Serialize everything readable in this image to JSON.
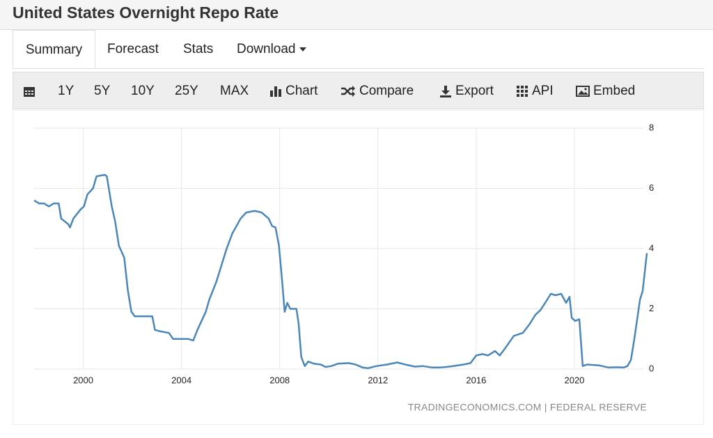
{
  "header": {
    "title": "United States Overnight Repo Rate"
  },
  "tabs": [
    "Summary",
    "Forecast",
    "Stats",
    "Download"
  ],
  "toolbar": [
    "1Y",
    "5Y",
    "10Y",
    "25Y",
    "MAX",
    "Chart",
    "Compare",
    "Export",
    "API",
    "Embed"
  ],
  "chart_data": {
    "type": "line",
    "color": "#4a86b8",
    "source": "TRADINGECONOMICS.COM | FEDERAL RESERVE",
    "x": [
      1998.0,
      1998.2,
      1998.4,
      1998.6,
      1998.8,
      1999.0,
      1999.1,
      1999.4,
      1999.46,
      1999.6,
      1999.89,
      2000.03,
      2000.17,
      2000.4,
      2000.54,
      2000.88,
      2000.96,
      2001.16,
      2001.3,
      2001.45,
      2001.67,
      2001.82,
      2001.96,
      2002.1,
      2002.58,
      2002.81,
      2002.92,
      2003.15,
      2003.49,
      2003.66,
      2004.06,
      2004.28,
      2004.48,
      2004.65,
      2004.99,
      2005.13,
      2005.42,
      2005.65,
      2005.84,
      2006.07,
      2006.41,
      2006.64,
      2006.98,
      2007.26,
      2007.55,
      2007.69,
      2007.83,
      2007.97,
      2008.09,
      2008.2,
      2008.31,
      2008.43,
      2008.68,
      2008.77,
      2008.88,
      2009.02,
      2009.16,
      2009.39,
      2009.67,
      2009.87,
      2010.1,
      2010.38,
      2010.81,
      2011.09,
      2011.38,
      2011.6,
      2011.94,
      2012.37,
      2012.79,
      2013.16,
      2013.5,
      2013.82,
      2014.21,
      2014.5,
      2014.78,
      2015.06,
      2015.49,
      2015.77,
      2016.0,
      2016.26,
      2016.48,
      2016.77,
      2016.96,
      2017.19,
      2017.53,
      2017.9,
      2018.18,
      2018.41,
      2018.61,
      2018.81,
      2019.04,
      2019.23,
      2019.46,
      2019.66,
      2019.8,
      2019.89,
      2020.03,
      2020.2,
      2020.34,
      2020.51,
      2021.02,
      2021.39,
      2021.73,
      2022.01,
      2022.16,
      2022.3,
      2022.44,
      2022.67,
      2022.78,
      2022.95
    ],
    "values": [
      5.6,
      5.5,
      5.5,
      5.4,
      5.5,
      5.5,
      5.0,
      4.8,
      4.7,
      5.0,
      5.3,
      5.4,
      5.8,
      6.0,
      6.4,
      6.45,
      6.4,
      5.4,
      4.9,
      4.1,
      3.7,
      2.6,
      1.9,
      1.75,
      1.75,
      1.75,
      1.3,
      1.25,
      1.2,
      1.0,
      1.0,
      1.0,
      0.95,
      1.3,
      1.9,
      2.3,
      2.9,
      3.5,
      4.0,
      4.5,
      5.0,
      5.2,
      5.25,
      5.2,
      5.0,
      4.75,
      4.7,
      4.1,
      3.0,
      1.9,
      2.2,
      2.0,
      2.0,
      1.5,
      0.4,
      0.1,
      0.25,
      0.18,
      0.15,
      0.07,
      0.1,
      0.18,
      0.2,
      0.15,
      0.05,
      0.03,
      0.1,
      0.15,
      0.22,
      0.14,
      0.08,
      0.1,
      0.05,
      0.05,
      0.07,
      0.1,
      0.15,
      0.2,
      0.45,
      0.5,
      0.45,
      0.6,
      0.45,
      0.7,
      1.1,
      1.2,
      1.5,
      1.8,
      1.95,
      2.2,
      2.5,
      2.45,
      2.5,
      2.2,
      2.4,
      1.7,
      1.6,
      1.65,
      0.1,
      0.15,
      0.12,
      0.05,
      0.06,
      0.05,
      0.1,
      0.3,
      1.0,
      2.3,
      2.6,
      3.85
    ],
    "xlim": [
      1998,
      2022.95
    ],
    "xticks": [
      2000,
      2004,
      2008,
      2012,
      2016,
      2020
    ],
    "ylim": [
      0,
      8
    ],
    "yticks": [
      0,
      2,
      4,
      6,
      8
    ],
    "grid": true
  }
}
